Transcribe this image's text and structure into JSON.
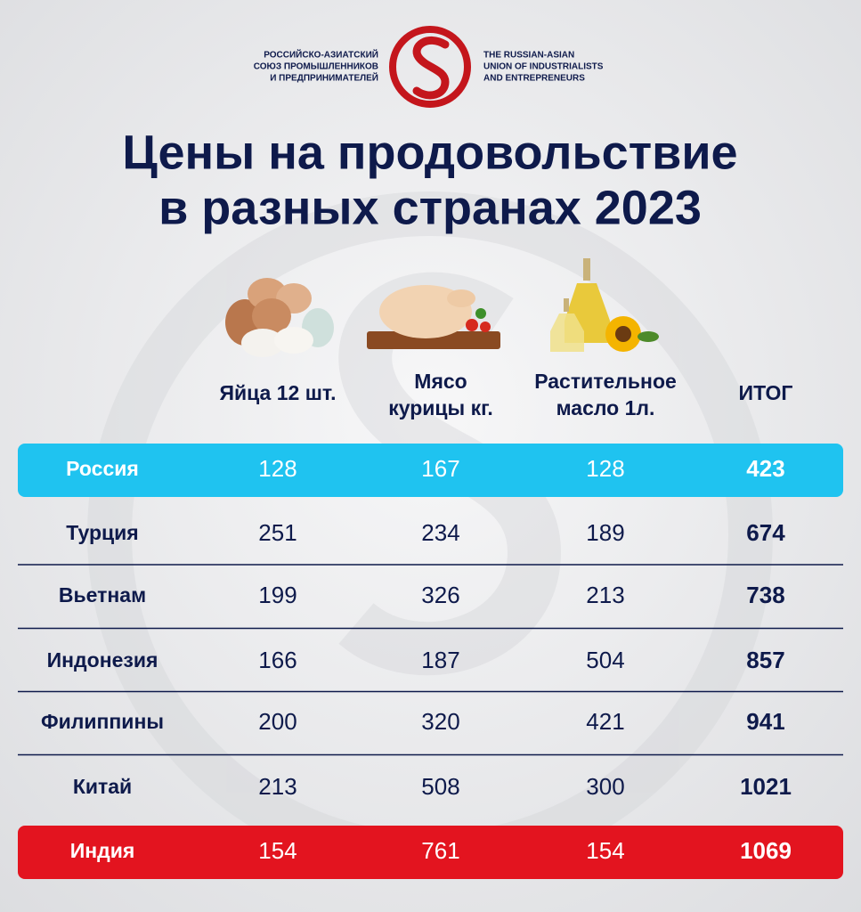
{
  "logo": {
    "left": [
      "РОССИЙСКО-АЗИАТСКИЙ",
      "СОЮЗ ПРОМЫШЛЕННИКОВ",
      "И ПРЕДПРИНИМАТЕЛЕЙ"
    ],
    "right": [
      "THE RUSSIAN-ASIAN",
      "UNION OF INDUSTRIALISTS",
      "AND ENTREPRENEURS"
    ]
  },
  "header": {
    "title": [
      "Цены на продовольствие",
      "в разных странах 2023"
    ]
  },
  "table": {
    "columns": [
      [
        "Яйца 12 шт."
      ],
      [
        "Мясо",
        "курицы кг."
      ],
      [
        "Растительное",
        "масло 1л."
      ],
      [
        "ИТОГ"
      ]
    ],
    "rows": [
      [
        "Россия",
        128,
        167,
        128,
        423
      ],
      [
        "Турция",
        251,
        234,
        189,
        674
      ],
      [
        "Вьетнам",
        199,
        326,
        213,
        738
      ],
      [
        "Индонезия",
        166,
        187,
        504,
        857
      ],
      [
        "Филиппины",
        200,
        320,
        421,
        941
      ],
      [
        "Китай",
        213,
        508,
        300,
        1021
      ],
      [
        "Индия",
        154,
        761,
        154,
        1069
      ]
    ]
  }
}
